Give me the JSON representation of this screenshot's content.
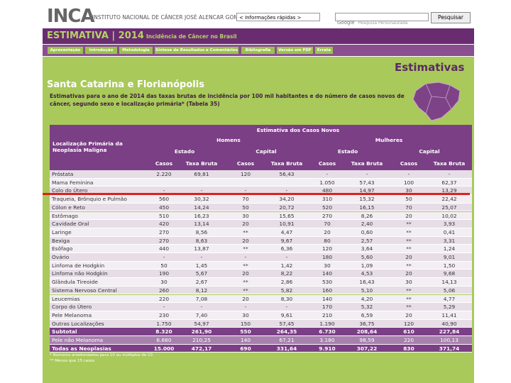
{
  "header": {
    "logo": "INCA",
    "institute": "INSTITUTO NACIONAL DE CÂNCER JOSÉ ALENCAR GOMES DA SILVA",
    "quick_info": "< Informações rápidas >",
    "search_brand": "Google",
    "search_placeholder": "Pesquisa Personalizada",
    "search_button": "Pesquisar"
  },
  "banner": {
    "title": "ESTIMATIVA | 2014",
    "subtitle": "Incidência de Câncer no Brasil"
  },
  "nav": [
    "Apresentação",
    "Introdução",
    "Metodologia",
    "Síntese de Resultados e Comentários",
    "Bibliografia",
    "Versão em PDF",
    "Errata"
  ],
  "page": {
    "heading": "Santa Catarina e Florianópolis",
    "badge": "Estimativas",
    "description": "Estimativas para o ano de 2014 das taxas brutas de incidência por 100 mil habitantes e do número de casos novos de câncer, segundo sexo e localização primária* (Tabela 35)"
  },
  "table": {
    "caption_left": "Localização Primária da Neoplasia Maligna",
    "estimate_header": "Estimativa dos Casos Novos",
    "groups": [
      "Homens",
      "Mulheres"
    ],
    "scopes": [
      "Estado",
      "Capital"
    ],
    "cols": [
      "Casos",
      "Taxa Bruta"
    ],
    "rows": [
      [
        "Próstata",
        "2.220",
        "69,81",
        "120",
        "56,43",
        "-",
        "-",
        "-",
        "-"
      ],
      [
        "Mama Feminina",
        null,
        null,
        null,
        null,
        "1.050",
        "57,43",
        "100",
        "62,37"
      ],
      [
        "Colo do Útero",
        "-",
        "-",
        "-",
        "-",
        "480",
        "14,97",
        "30",
        "13,29"
      ],
      [
        "Traqueia, Brônquio e Pulmão",
        "560",
        "30,32",
        "70",
        "34,20",
        "310",
        "15,32",
        "50",
        "22,42"
      ],
      [
        "Cólon e Reto",
        "450",
        "14,24",
        "50",
        "20,72",
        "520",
        "16,15",
        "70",
        "25,07"
      ],
      [
        "Estômago",
        "510",
        "16,23",
        "30",
        "15,65",
        "270",
        "8,26",
        "20",
        "10,02"
      ],
      [
        "Cavidade Oral",
        "420",
        "13,14",
        "20",
        "10,91",
        "70",
        "2,40",
        "**",
        "3,93"
      ],
      [
        "Laringe",
        "270",
        "8,56",
        "**",
        "4,47",
        "20",
        "0,60",
        "**",
        "0,41"
      ],
      [
        "Bexiga",
        "270",
        "8,63",
        "20",
        "9,67",
        "80",
        "2,57",
        "**",
        "3,31"
      ],
      [
        "Esôfago",
        "440",
        "13,87",
        "**",
        "6,36",
        "120",
        "3,64",
        "**",
        "1,24"
      ],
      [
        "Ovário",
        "-",
        "-",
        "-",
        "-",
        "180",
        "5,60",
        "20",
        "9,01"
      ],
      [
        "Linfoma de Hodgkin",
        "50",
        "1,45",
        "**",
        "1,42",
        "30",
        "1,09",
        "**",
        "1,50"
      ],
      [
        "Linfoma não Hodgkin",
        "190",
        "5,67",
        "20",
        "8,22",
        "140",
        "4,53",
        "20",
        "9,68"
      ],
      [
        "Glândula Tireoide",
        "30",
        "2,67",
        "**",
        "2,86",
        "530",
        "16,43",
        "30",
        "14,13"
      ],
      [
        "Sistema Nervoso Central",
        "260",
        "8,12",
        "**",
        "5,82",
        "160",
        "5,10",
        "**",
        "5,06"
      ],
      [
        "Leucemias",
        "220",
        "7,08",
        "20",
        "8,30",
        "140",
        "4,20",
        "**",
        "4,77"
      ],
      [
        "Corpo do Útero",
        "-",
        "-",
        "-",
        "-",
        "170",
        "5,32",
        "**",
        "5,29"
      ],
      [
        "Pele Melanoma",
        "230",
        "7,40",
        "30",
        "9,61",
        "210",
        "6,59",
        "20",
        "11,41"
      ],
      [
        "Outras Localizações",
        "1.750",
        "54,97",
        "150",
        "57,45",
        "1.190",
        "36,75",
        "120",
        "40,90"
      ],
      [
        "Subtotal",
        "8.320",
        "261,90",
        "550",
        "264,35",
        "6.730",
        "208,64",
        "610",
        "227,84"
      ],
      [
        "Pele não Melanoma",
        "6.680",
        "210,25",
        "140",
        "67,21",
        "3.180",
        "98,59",
        "220",
        "100,13"
      ],
      [
        "Todas as Neoplasias",
        "15.000",
        "472,17",
        "690",
        "331,64",
        "9.910",
        "307,22",
        "830",
        "371,74"
      ]
    ]
  },
  "footnotes": [
    "* Números arredondados para 10 ou múltiplos de 10",
    "** Menos que 15 casos"
  ]
}
